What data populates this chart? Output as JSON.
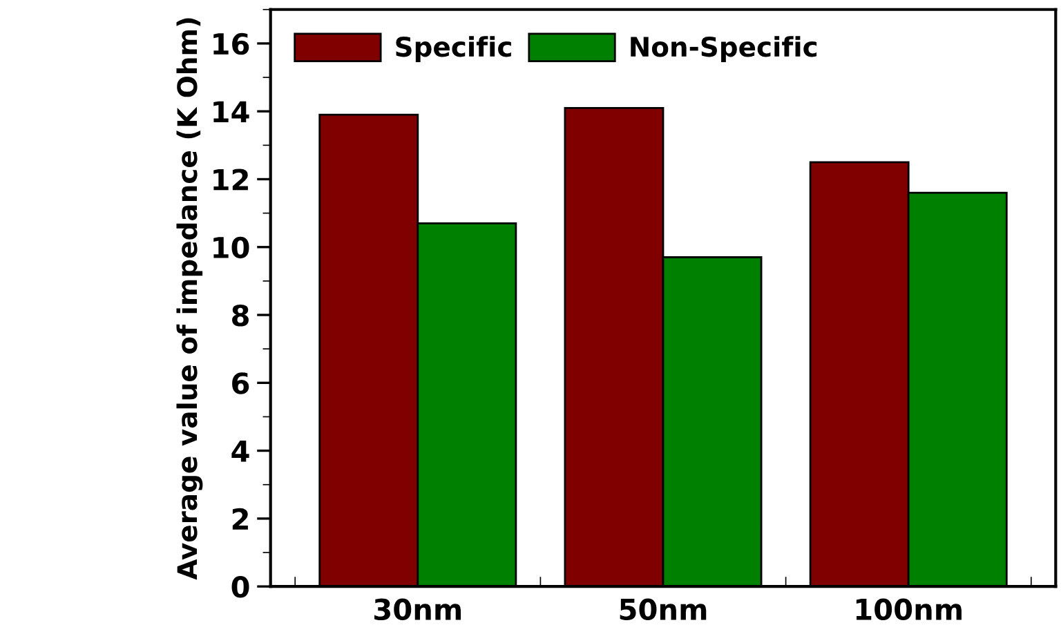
{
  "chart_data": {
    "type": "bar",
    "ylabel": "Average value of impedance (K Ohm)",
    "categories": [
      "30nm",
      "50nm",
      "100nm"
    ],
    "series": [
      {
        "name": "Specific",
        "color": "#800000",
        "values": [
          13.9,
          14.1,
          12.5
        ]
      },
      {
        "name": "Non-Specific",
        "color": "#008000",
        "values": [
          10.7,
          9.7,
          11.6
        ]
      }
    ],
    "ylim": [
      0,
      17
    ],
    "yticks": [
      0,
      2,
      4,
      6,
      8,
      10,
      12,
      14,
      16
    ],
    "legend": "top left",
    "grid": false
  }
}
